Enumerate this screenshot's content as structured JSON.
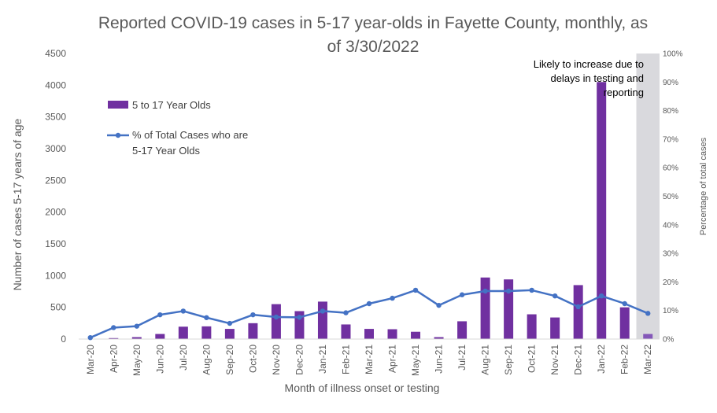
{
  "chart_data": {
    "type": "bar",
    "title_lines": [
      "Reported COVID-19 cases in 5-17 year-olds in Fayette County, monthly, as",
      "of 3/30/2022"
    ],
    "xlabel": "Month of illness onset or testing",
    "ylabel": "Number of cases 5-17 years of age",
    "y2label": "Percentage of total cases",
    "ylim": [
      0,
      4500
    ],
    "y_ticks": [
      "0",
      "500",
      "1000",
      "1500",
      "2000",
      "2500",
      "3000",
      "3500",
      "4000",
      "4500"
    ],
    "y2lim": [
      0,
      100
    ],
    "y2_ticks": [
      "0%",
      "10%",
      "20%",
      "30%",
      "40%",
      "50%",
      "60%",
      "70%",
      "80%",
      "90%",
      "100%"
    ],
    "categories": [
      "Mar-20",
      "Apr-20",
      "May-20",
      "Jun-20",
      "Jul-20",
      "Aug-20",
      "Sep-20",
      "Oct-20",
      "Nov-20",
      "Dec-20",
      "Jan-21",
      "Feb-21",
      "Mar-21",
      "Apr-21",
      "May-21",
      "Jun-21",
      "Jul-21",
      "Aug-21",
      "Sep-21",
      "Oct-21",
      "Nov-21",
      "Dec-21",
      "Jan-22",
      "Feb-22",
      "Mar-22"
    ],
    "series": [
      {
        "name": "5 to 17 Year Olds",
        "kind": "bar",
        "axis": "left",
        "color": "#7030A0",
        "values": [
          5,
          15,
          30,
          80,
          195,
          200,
          160,
          250,
          550,
          440,
          590,
          230,
          160,
          155,
          115,
          30,
          280,
          970,
          940,
          390,
          340,
          850,
          4050,
          500,
          80
        ]
      },
      {
        "name_lines": [
          "% of Total Cases who are",
          "5-17 Year Olds"
        ],
        "kind": "line",
        "axis": "right",
        "color": "#4472C4",
        "values": [
          0.5,
          4,
          4.5,
          8.5,
          9.8,
          7.5,
          5.5,
          8.5,
          7.7,
          7.6,
          9.8,
          9.2,
          12.4,
          14.3,
          17.1,
          11.8,
          15.5,
          16.8,
          16.8,
          17.1,
          15.1,
          11.3,
          15.1,
          12.4,
          9
        ]
      }
    ],
    "highlight": {
      "category": "Mar-22",
      "color": "#D9D9DD"
    },
    "annotation_lines": [
      "Likely to increase due to",
      "delays in testing and",
      "reporting"
    ],
    "legend_placement": "top-left",
    "grid": false
  }
}
